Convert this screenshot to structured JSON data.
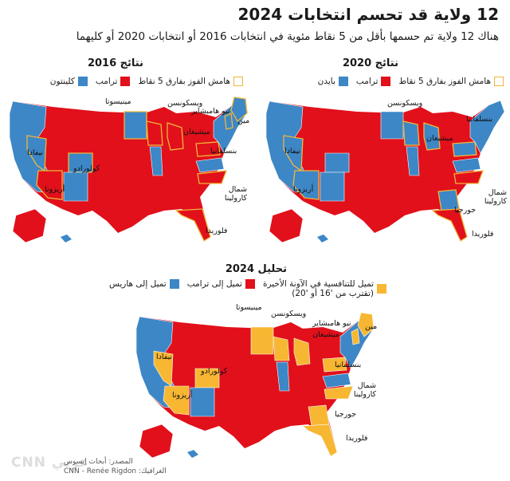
{
  "header": {
    "title": "12 ولاية قد تحسم انتخابات 2024",
    "subtitle": "هناك 12 ولاية تم حسمها بأقل من 5 نقاط مئوية في انتخابات 2016 أو انتخابات 2020 أو كليهما"
  },
  "map2016": {
    "title": "نتائج 2016",
    "legend": {
      "dem": "كلينتون",
      "rep": "ترامب",
      "margin": "هامش الفوز بفارق 5 نقاط"
    },
    "labels": {
      "minnesota": "مينيسوتا",
      "newhampshire": "نيو هامبشاير",
      "wisconsin": "ويسكونسن",
      "michigan": "ميشيغان",
      "maine": "مين",
      "pennsylvania": "بنسلفانيا",
      "nevada": "نيفادا",
      "colorado": "كولورادو",
      "arizona": "أريزونا",
      "northcarolina": "شمال كارولينا",
      "florida": "فلوريدا"
    }
  },
  "map2020": {
    "title": "نتائج 2020",
    "legend": {
      "dem": "بايدن",
      "rep": "ترامب",
      "margin": "هامش الفوز بفارق 5 نقاط"
    },
    "labels": {
      "wisconsin": "ويسكونسن",
      "pennsylvania": "بنسلفانيا",
      "michigan": "ميشيغان",
      "nevada": "نيفادا",
      "arizona": "أريزونا",
      "northcarolina": "شمال كارولينا",
      "georgia": "جورجيا",
      "florida": "فلوريدا"
    }
  },
  "map2024": {
    "title": "تحليل 2024",
    "legend": {
      "dem": "تميل إلى هاريس",
      "rep": "تميل إلى ترامب",
      "tossup": "تميل للتنافسية في الآونة الأخيرة",
      "tossup_note": "(تقترب من '16 أو '20)"
    },
    "labels": {
      "minnesota": "مينيسوتا",
      "wisconsin": "ويسكونسن",
      "newhampshire": "نيو هامبشاير",
      "maine": "مين",
      "michigan": "ميشيغان",
      "pennsylvania": "بنسلفانيا",
      "nevada": "نيفادا",
      "colorado": "كولورادو",
      "arizona": "أريزونا",
      "northcarolina": "شمال كارولينا",
      "georgia": "جورجيا",
      "florida": "فلوريدا"
    }
  },
  "footer": {
    "source": "المصدر: أبحاث إبسوس",
    "credit": "الغرافيك: CNN - Renée Rigdon",
    "logo": "CNN عربي"
  },
  "colors": {
    "dem": "#3d87c6",
    "rep": "#e1101b",
    "tossup": "#f7b732",
    "margin": "#f0b63a"
  }
}
